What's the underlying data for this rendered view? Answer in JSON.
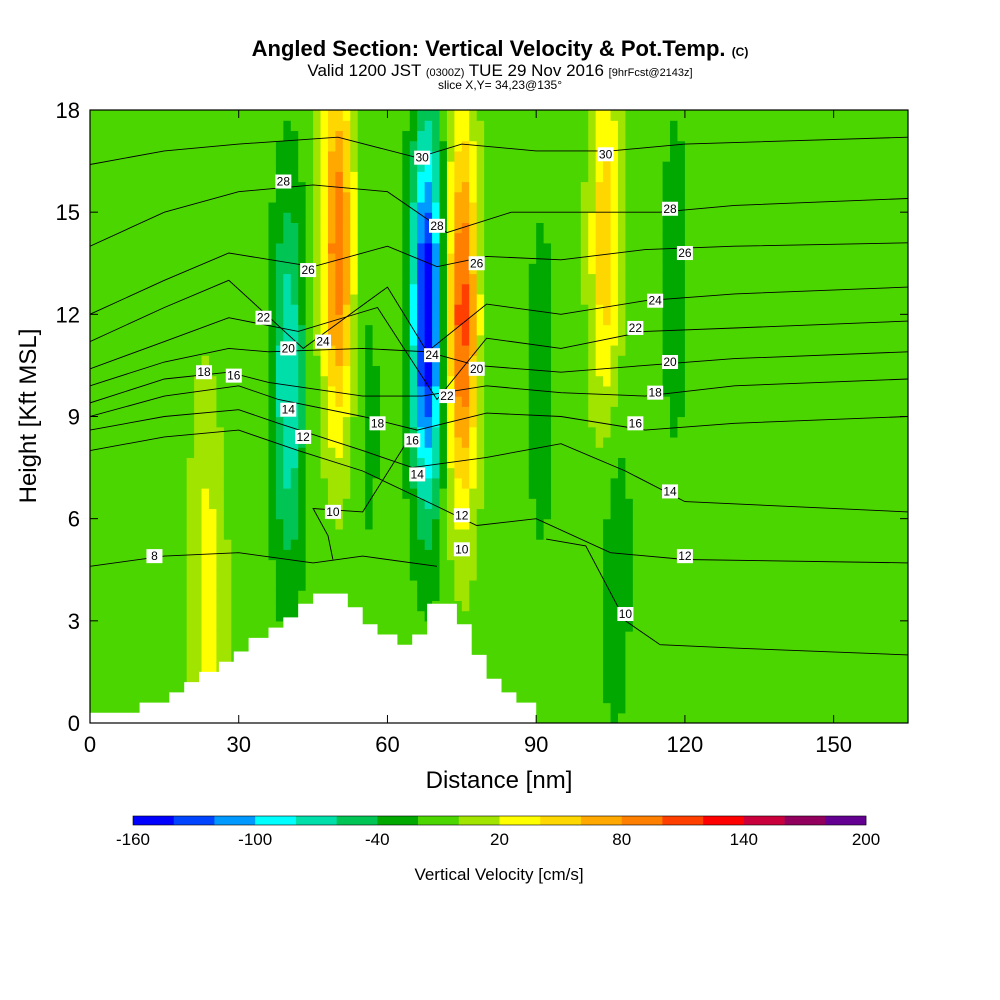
{
  "title": {
    "main": "Angled Section: Vertical Velocity & Pot.Temp.",
    "main_unit": "(C)",
    "valid_prefix": "Valid 1200 JST",
    "valid_utc": "(0300Z)",
    "valid_date": "TUE 29 Nov 2016",
    "forecast": "[9hrFcst@2143z]",
    "slice": "slice X,Y= 34,23@135°"
  },
  "colors": {
    "levels": [
      "#0000ff",
      "#0044ff",
      "#0099ff",
      "#00ffff",
      "#00dfaa",
      "#00c554",
      "#00a800",
      "#4cd600",
      "#a0e400",
      "#ffff00",
      "#ffd700",
      "#ffa800",
      "#ff7f00",
      "#ff3f00",
      "#ff0000",
      "#c9003b",
      "#91005c",
      "#640091"
    ],
    "terrain": "#ffffff",
    "contour": "#000000"
  },
  "chart_data": {
    "type": "heatmap",
    "title": "Angled Section: Vertical Velocity & Pot.Temp. (C)",
    "xlabel": "Distance [nm]",
    "ylabel": "Height [Kft MSL]",
    "xlim": [
      0,
      165
    ],
    "ylim": [
      0,
      18
    ],
    "xticks": [
      0,
      30,
      60,
      90,
      120,
      150
    ],
    "yticks": [
      0,
      3,
      6,
      9,
      12,
      15,
      18
    ],
    "colorbar": {
      "label": "Vertical Velocity [cm/s]",
      "min": -160,
      "max": 200,
      "step": 20,
      "tick_values": [
        -160,
        -100,
        -40,
        20,
        80,
        140,
        200
      ],
      "tick_labels": [
        "-160",
        "-100",
        "-40",
        "20",
        "80",
        "140",
        "200"
      ]
    },
    "vertical_velocity_features": [
      {
        "x": 23,
        "z": 5,
        "value": 15
      },
      {
        "x": 40,
        "z": 10,
        "value": -80
      },
      {
        "x": 50,
        "z": 14,
        "value": 95
      },
      {
        "x": 56,
        "z": 9,
        "value": -25
      },
      {
        "x": 68,
        "z": 12,
        "value": -160
      },
      {
        "x": 75,
        "z": 12,
        "value": 110
      },
      {
        "x": 91,
        "z": 10,
        "value": -30
      },
      {
        "x": 104,
        "z": 14,
        "value": 55
      },
      {
        "x": 106,
        "z": 5,
        "value": -35
      },
      {
        "x": 118,
        "z": 13,
        "value": -30
      },
      {
        "x": 25,
        "z": 2,
        "value": 12
      }
    ],
    "terrain_profile": [
      [
        0,
        0.3
      ],
      [
        10,
        0.3
      ],
      [
        10,
        0.6
      ],
      [
        16,
        0.6
      ],
      [
        16,
        0.9
      ],
      [
        19,
        0.9
      ],
      [
        19,
        1.2
      ],
      [
        22,
        1.2
      ],
      [
        22,
        1.5
      ],
      [
        26,
        1.5
      ],
      [
        26,
        1.8
      ],
      [
        29,
        1.8
      ],
      [
        29,
        2.1
      ],
      [
        32,
        2.1
      ],
      [
        32,
        2.5
      ],
      [
        36,
        2.5
      ],
      [
        36,
        2.8
      ],
      [
        39,
        2.8
      ],
      [
        39,
        3.1
      ],
      [
        42,
        3.1
      ],
      [
        42,
        3.5
      ],
      [
        45,
        3.5
      ],
      [
        45,
        3.8
      ],
      [
        52,
        3.8
      ],
      [
        52,
        3.4
      ],
      [
        55,
        3.4
      ],
      [
        55,
        2.9
      ],
      [
        58,
        2.9
      ],
      [
        58,
        2.6
      ],
      [
        62,
        2.6
      ],
      [
        62,
        2.3
      ],
      [
        65,
        2.3
      ],
      [
        65,
        2.6
      ],
      [
        68,
        2.6
      ],
      [
        68,
        3.5
      ],
      [
        74,
        3.5
      ],
      [
        74,
        2.9
      ],
      [
        77,
        2.9
      ],
      [
        77,
        2.0
      ],
      [
        80,
        2.0
      ],
      [
        80,
        1.3
      ],
      [
        83,
        1.3
      ],
      [
        83,
        0.9
      ],
      [
        86,
        0.9
      ],
      [
        86,
        0.6
      ],
      [
        90,
        0.6
      ],
      [
        90,
        0
      ]
    ],
    "theta_contours": [
      {
        "label": "8",
        "points": [
          [
            0,
            4.6
          ],
          [
            15,
            4.9
          ],
          [
            30,
            5.0
          ],
          [
            45,
            4.7
          ],
          [
            55,
            4.9
          ],
          [
            70,
            4.6
          ]
        ]
      },
      {
        "label": "10",
        "points": [
          [
            65,
            8.5
          ],
          [
            55,
            6.2
          ],
          [
            45,
            6.3
          ],
          [
            48,
            5.5
          ],
          [
            49,
            4.8
          ]
        ]
      },
      {
        "label": "10",
        "points": [
          [
            92,
            5.4
          ],
          [
            100,
            5.2
          ],
          [
            108,
            3.0
          ],
          [
            115,
            2.3
          ],
          [
            130,
            2.2
          ],
          [
            165,
            2.0
          ]
        ]
      },
      {
        "label": "12",
        "points": [
          [
            0,
            8.0
          ],
          [
            15,
            8.4
          ],
          [
            30,
            8.6
          ],
          [
            42,
            8.0
          ],
          [
            55,
            7.4
          ],
          [
            68,
            6.5
          ],
          [
            78,
            5.8
          ],
          [
            90,
            6.0
          ],
          [
            105,
            5.0
          ],
          [
            120,
            4.8
          ],
          [
            165,
            4.7
          ]
        ]
      },
      {
        "label": "14",
        "points": [
          [
            0,
            8.6
          ],
          [
            15,
            9.0
          ],
          [
            30,
            9.2
          ],
          [
            38,
            8.8
          ],
          [
            55,
            8.0
          ],
          [
            65,
            7.5
          ],
          [
            80,
            7.8
          ],
          [
            95,
            8.2
          ],
          [
            108,
            7.4
          ],
          [
            120,
            6.5
          ],
          [
            165,
            6.2
          ]
        ]
      },
      {
        "label": "16",
        "points": [
          [
            0,
            9.0
          ],
          [
            15,
            9.6
          ],
          [
            30,
            9.9
          ],
          [
            38,
            9.5
          ],
          [
            55,
            9.0
          ],
          [
            66,
            8.6
          ],
          [
            80,
            9.1
          ],
          [
            95,
            9.0
          ],
          [
            112,
            8.6
          ],
          [
            130,
            8.8
          ],
          [
            165,
            9.0
          ]
        ]
      },
      {
        "label": "18",
        "points": [
          [
            0,
            9.4
          ],
          [
            15,
            10.1
          ],
          [
            28,
            10.3
          ],
          [
            36,
            10.0
          ],
          [
            55,
            9.6
          ],
          [
            67,
            9.6
          ],
          [
            80,
            9.9
          ],
          [
            95,
            9.7
          ],
          [
            112,
            9.6
          ],
          [
            130,
            9.9
          ],
          [
            165,
            10.1
          ]
        ]
      },
      {
        "label": "20",
        "points": [
          [
            0,
            9.9
          ],
          [
            15,
            10.6
          ],
          [
            28,
            11.0
          ],
          [
            36,
            10.9
          ],
          [
            55,
            11.0
          ],
          [
            68,
            10.9
          ],
          [
            78,
            10.5
          ],
          [
            95,
            10.3
          ],
          [
            112,
            10.5
          ],
          [
            130,
            10.7
          ],
          [
            165,
            10.9
          ]
        ]
      },
      {
        "label": "22",
        "points": [
          [
            0,
            10.4
          ],
          [
            15,
            11.2
          ],
          [
            28,
            11.9
          ],
          [
            42,
            11.5
          ],
          [
            58,
            12.2
          ],
          [
            70,
            9.5
          ],
          [
            80,
            11.3
          ],
          [
            95,
            11.0
          ],
          [
            112,
            11.5
          ],
          [
            130,
            11.6
          ],
          [
            165,
            11.8
          ]
        ]
      },
      {
        "label": "24",
        "points": [
          [
            0,
            11.2
          ],
          [
            15,
            12.2
          ],
          [
            28,
            13.0
          ],
          [
            43,
            11.0
          ],
          [
            60,
            12.8
          ],
          [
            68,
            10.9
          ],
          [
            80,
            12.3
          ],
          [
            95,
            12.0
          ],
          [
            112,
            12.4
          ],
          [
            130,
            12.6
          ],
          [
            165,
            12.8
          ]
        ]
      },
      {
        "label": "26",
        "points": [
          [
            0,
            12.0
          ],
          [
            15,
            13.0
          ],
          [
            28,
            13.8
          ],
          [
            45,
            13.4
          ],
          [
            60,
            14.0
          ],
          [
            70,
            13.4
          ],
          [
            80,
            13.7
          ],
          [
            95,
            13.6
          ],
          [
            112,
            13.9
          ],
          [
            130,
            14.0
          ],
          [
            165,
            14.1
          ]
        ]
      },
      {
        "label": "28",
        "points": [
          [
            0,
            14.0
          ],
          [
            15,
            15.0
          ],
          [
            30,
            15.6
          ],
          [
            45,
            15.8
          ],
          [
            60,
            15.6
          ],
          [
            72,
            14.4
          ],
          [
            85,
            15.0
          ],
          [
            100,
            15.0
          ],
          [
            115,
            15.0
          ],
          [
            130,
            15.2
          ],
          [
            165,
            15.4
          ]
        ]
      },
      {
        "label": "30",
        "points": [
          [
            0,
            16.4
          ],
          [
            15,
            16.8
          ],
          [
            30,
            17.0
          ],
          [
            50,
            17.2
          ],
          [
            66,
            16.6
          ],
          [
            75,
            17.0
          ],
          [
            90,
            16.8
          ],
          [
            105,
            16.8
          ],
          [
            120,
            17.0
          ],
          [
            165,
            17.2
          ]
        ]
      }
    ],
    "contour_labels": [
      {
        "text": "28",
        "x": 39,
        "z": 15.9
      },
      {
        "text": "30",
        "x": 67,
        "z": 16.6
      },
      {
        "text": "30",
        "x": 104,
        "z": 16.7
      },
      {
        "text": "28",
        "x": 70,
        "z": 14.6
      },
      {
        "text": "28",
        "x": 117,
        "z": 15.1
      },
      {
        "text": "26",
        "x": 44,
        "z": 13.3
      },
      {
        "text": "26",
        "x": 78,
        "z": 13.5
      },
      {
        "text": "26",
        "x": 120,
        "z": 13.8
      },
      {
        "text": "24",
        "x": 114,
        "z": 12.4
      },
      {
        "text": "22",
        "x": 35,
        "z": 11.9
      },
      {
        "text": "22",
        "x": 110,
        "z": 11.6
      },
      {
        "text": "24",
        "x": 47,
        "z": 11.2
      },
      {
        "text": "24",
        "x": 69,
        "z": 10.8
      },
      {
        "text": "20",
        "x": 40,
        "z": 11.0
      },
      {
        "text": "20",
        "x": 78,
        "z": 10.4
      },
      {
        "text": "20",
        "x": 117,
        "z": 10.6
      },
      {
        "text": "18",
        "x": 23,
        "z": 10.3
      },
      {
        "text": "16",
        "x": 29,
        "z": 10.2
      },
      {
        "text": "18",
        "x": 114,
        "z": 9.7
      },
      {
        "text": "22",
        "x": 72,
        "z": 9.6
      },
      {
        "text": "14",
        "x": 40,
        "z": 9.2
      },
      {
        "text": "18",
        "x": 58,
        "z": 8.8
      },
      {
        "text": "16",
        "x": 110,
        "z": 8.8
      },
      {
        "text": "12",
        "x": 43,
        "z": 8.4
      },
      {
        "text": "16",
        "x": 65,
        "z": 8.3
      },
      {
        "text": "14",
        "x": 66,
        "z": 7.3
      },
      {
        "text": "14",
        "x": 117,
        "z": 6.8
      },
      {
        "text": "10",
        "x": 49,
        "z": 6.2
      },
      {
        "text": "12",
        "x": 75,
        "z": 6.1
      },
      {
        "text": "10",
        "x": 75,
        "z": 5.1
      },
      {
        "text": "8",
        "x": 13,
        "z": 4.9
      },
      {
        "text": "12",
        "x": 120,
        "z": 4.9
      },
      {
        "text": "10",
        "x": 108,
        "z": 3.2
      }
    ]
  }
}
